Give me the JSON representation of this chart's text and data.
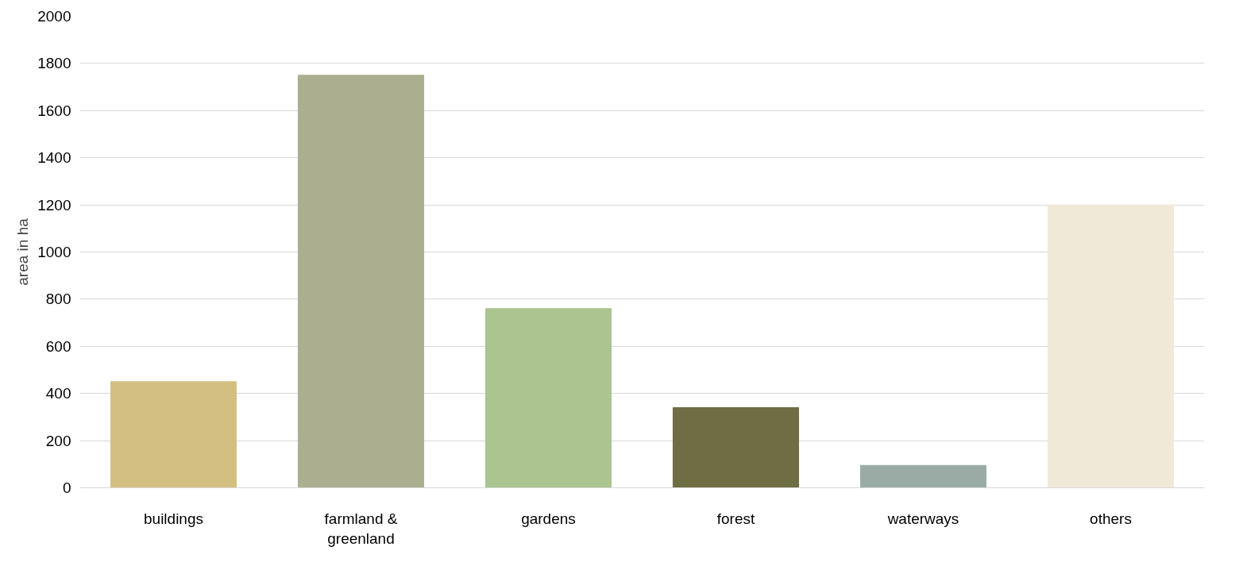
{
  "chart_data": {
    "type": "bar",
    "ylabel": "area in ha",
    "categories": [
      "buildings",
      "farmland &\ngreenland",
      "gardens",
      "forest",
      "waterways",
      "others"
    ],
    "values": [
      450,
      1750,
      760,
      340,
      95,
      1200
    ],
    "colors": [
      "#d4bf82",
      "#acaf8f",
      "#abc490",
      "#6e6d44",
      "#9aaba6",
      "#f0e9d8"
    ],
    "ylim": [
      0,
      2000
    ],
    "yticks": [
      0,
      200,
      400,
      600,
      800,
      1000,
      1200,
      1400,
      1600,
      1800,
      2000
    ],
    "grid": "y"
  }
}
